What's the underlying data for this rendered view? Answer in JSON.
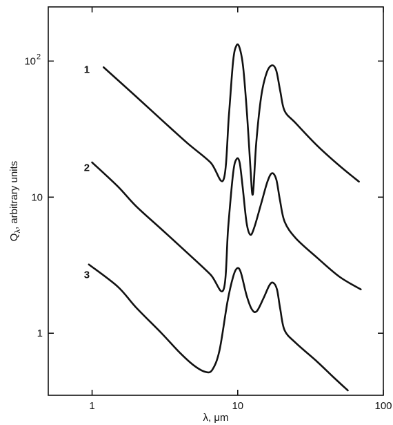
{
  "chart_data": {
    "type": "line",
    "x_scale": "log",
    "y_scale": "log",
    "xlim": [
      0.5,
      100
    ],
    "ylim": [
      0.35,
      250
    ],
    "xlabel": "λ, μm",
    "ylabel": "Qλ, arbitrary units",
    "ylabel_main": "Q",
    "ylabel_sub": "λ",
    "ylabel_rest": ", arbitrary units",
    "x_ticks": [
      {
        "value": 1,
        "label": "1"
      },
      {
        "value": 10,
        "label": "10"
      },
      {
        "value": 100,
        "label": "100"
      }
    ],
    "y_ticks": [
      {
        "value": 1,
        "label": "1"
      },
      {
        "value": 10,
        "label": "10"
      },
      {
        "value": 100,
        "label": "10",
        "sup": "2"
      }
    ],
    "grid": false,
    "series": [
      {
        "label": "1",
        "label_at": {
          "x": 0.92,
          "y": 87
        },
        "points": [
          [
            1.2,
            90
          ],
          [
            2.0,
            55
          ],
          [
            3.0,
            37
          ],
          [
            4.5,
            25
          ],
          [
            6.5,
            18
          ],
          [
            8.0,
            13.5
          ],
          [
            8.7,
            40
          ],
          [
            9.3,
            100
          ],
          [
            9.8,
            130
          ],
          [
            10.3,
            125
          ],
          [
            10.9,
            90
          ],
          [
            11.6,
            40
          ],
          [
            12.2,
            17
          ],
          [
            12.7,
            10.5
          ],
          [
            13.4,
            25
          ],
          [
            14.5,
            55
          ],
          [
            15.8,
            82
          ],
          [
            17.2,
            93
          ],
          [
            18.4,
            85
          ],
          [
            19.6,
            60
          ],
          [
            21.0,
            43
          ],
          [
            25.0,
            35
          ],
          [
            35.0,
            24
          ],
          [
            50.0,
            17
          ],
          [
            68.0,
            13
          ]
        ]
      },
      {
        "label": "2",
        "label_at": {
          "x": 0.92,
          "y": 16.5
        },
        "points": [
          [
            1.0,
            18
          ],
          [
            1.5,
            12
          ],
          [
            2.0,
            8.6
          ],
          [
            3.0,
            5.8
          ],
          [
            4.5,
            3.9
          ],
          [
            6.5,
            2.7
          ],
          [
            8.0,
            2.1
          ],
          [
            8.6,
            6
          ],
          [
            9.3,
            15
          ],
          [
            9.8,
            19
          ],
          [
            10.3,
            18
          ],
          [
            10.8,
            12
          ],
          [
            11.5,
            6.5
          ],
          [
            12.2,
            5.3
          ],
          [
            13.0,
            6
          ],
          [
            14.5,
            9
          ],
          [
            16.0,
            13
          ],
          [
            17.2,
            15
          ],
          [
            18.4,
            13.5
          ],
          [
            19.5,
            9.5
          ],
          [
            21.0,
            6.6
          ],
          [
            25.0,
            5.0
          ],
          [
            35.0,
            3.6
          ],
          [
            50.0,
            2.6
          ],
          [
            70.0,
            2.1
          ]
        ]
      },
      {
        "label": "3",
        "label_at": {
          "x": 0.92,
          "y": 2.7
        },
        "points": [
          [
            0.95,
            3.2
          ],
          [
            1.5,
            2.2
          ],
          [
            2.0,
            1.55
          ],
          [
            3.0,
            1.0
          ],
          [
            4.0,
            0.72
          ],
          [
            5.0,
            0.58
          ],
          [
            6.0,
            0.52
          ],
          [
            6.7,
            0.54
          ],
          [
            7.5,
            0.75
          ],
          [
            8.5,
            1.7
          ],
          [
            9.3,
            2.6
          ],
          [
            9.9,
            3.0
          ],
          [
            10.5,
            2.8
          ],
          [
            11.5,
            1.9
          ],
          [
            12.5,
            1.5
          ],
          [
            13.5,
            1.45
          ],
          [
            15.0,
            1.8
          ],
          [
            16.5,
            2.25
          ],
          [
            17.5,
            2.35
          ],
          [
            18.6,
            2.1
          ],
          [
            19.6,
            1.5
          ],
          [
            21.0,
            1.05
          ],
          [
            25.0,
            0.85
          ],
          [
            35.0,
            0.62
          ],
          [
            45.0,
            0.48
          ],
          [
            57.0,
            0.38
          ]
        ]
      }
    ]
  }
}
